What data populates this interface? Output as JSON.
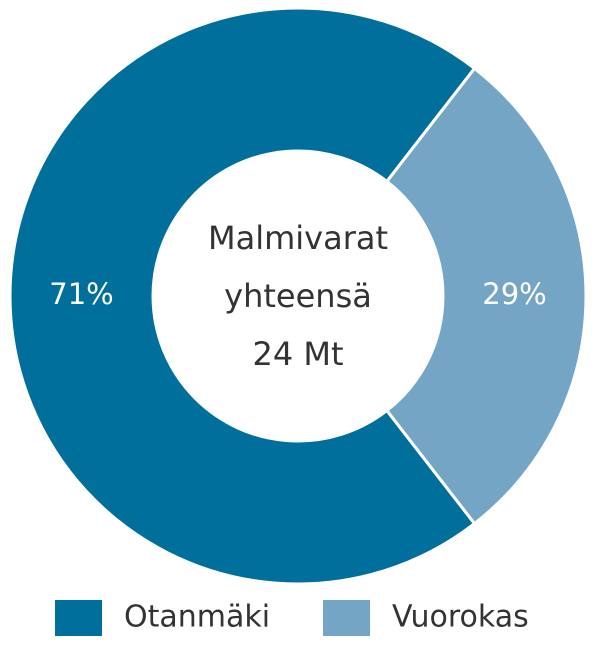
{
  "chart_data": {
    "type": "donut",
    "center_text": [
      "Malmivarat",
      "yhteensä",
      "24 Mt"
    ],
    "categories": [
      "Otanmäki",
      "Vuorokas"
    ],
    "values": [
      71,
      29
    ],
    "value_labels": [
      "71%",
      "29%"
    ],
    "colors": [
      "#006f9c",
      "#74a5c4"
    ],
    "legend": "bottom"
  }
}
